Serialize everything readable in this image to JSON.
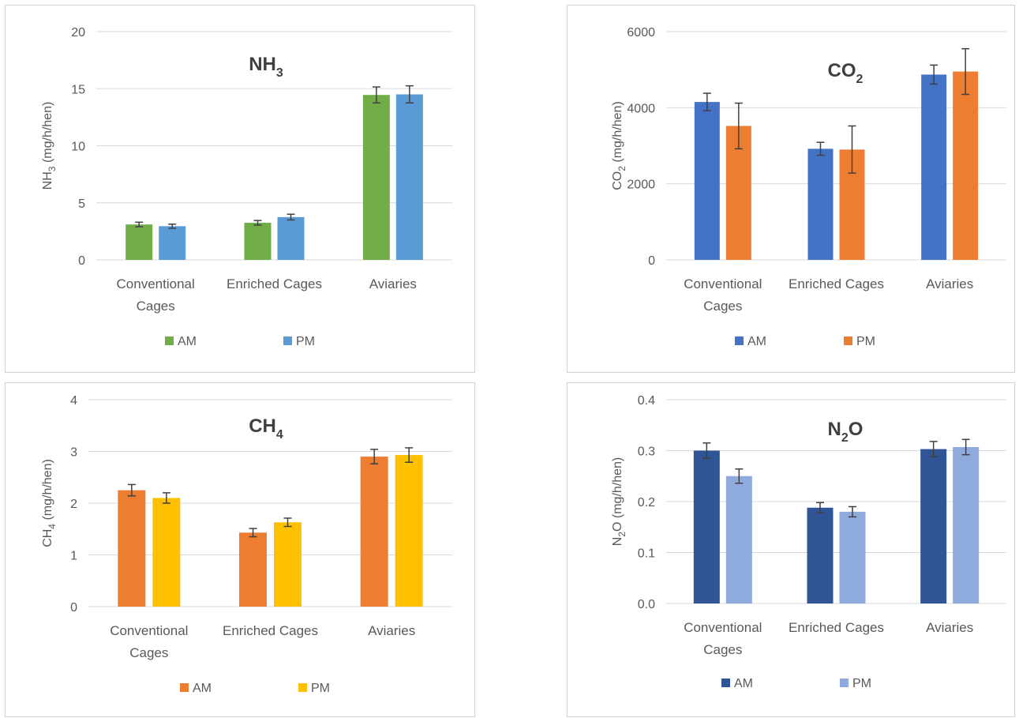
{
  "chart_data": [
    {
      "type": "bar",
      "title": "NH3",
      "title_main": "NH",
      "title_sub": "3",
      "ylabel_pre": "NH",
      "ylabel_sub": "3",
      "ylabel_post": " (mg/h/hen)",
      "categories": [
        [
          "Conventional",
          "Cages"
        ],
        [
          "Enriched Cages"
        ],
        [
          "Aviaries"
        ]
      ],
      "ylim": [
        0,
        20
      ],
      "yticks": [
        "0",
        "5",
        "10",
        "15",
        "20"
      ],
      "series": [
        {
          "name": "AM",
          "color": "#70ad47",
          "values": [
            3.1,
            3.25,
            14.45
          ],
          "errors": [
            0.2,
            0.2,
            0.7
          ]
        },
        {
          "name": "PM",
          "color": "#5b9bd5",
          "values": [
            2.95,
            3.75,
            14.5
          ],
          "errors": [
            0.18,
            0.25,
            0.75
          ]
        }
      ],
      "grid": true,
      "legend": "bottom"
    },
    {
      "type": "bar",
      "title": "CO2",
      "title_main": "CO",
      "title_sub": "2",
      "ylabel_pre": "CO",
      "ylabel_sub": "2",
      "ylabel_post": " (mg/h/hen)",
      "categories": [
        [
          "Conventional",
          "Cages"
        ],
        [
          "Enriched Cages"
        ],
        [
          "Aviaries"
        ]
      ],
      "ylim": [
        0,
        6000
      ],
      "yticks": [
        "0",
        "2000",
        "4000",
        "6000"
      ],
      "series": [
        {
          "name": "AM",
          "color": "#4472c4",
          "values": [
            4150,
            2920,
            4870
          ],
          "errors": [
            230,
            170,
            250
          ]
        },
        {
          "name": "PM",
          "color": "#ed7d31",
          "values": [
            3520,
            2900,
            4950
          ],
          "errors": [
            600,
            620,
            600
          ]
        }
      ],
      "grid": true,
      "legend": "bottom"
    },
    {
      "type": "bar",
      "title": "CH4",
      "title_main": "CH",
      "title_sub": "4",
      "ylabel_pre": "CH",
      "ylabel_sub": "4",
      "ylabel_post": " (mg/h/hen)",
      "categories": [
        [
          "Conventional",
          "Cages"
        ],
        [
          "Enriched Cages"
        ],
        [
          "Aviaries"
        ]
      ],
      "ylim": [
        0,
        4
      ],
      "yticks": [
        "0",
        "1",
        "2",
        "3",
        "4"
      ],
      "series": [
        {
          "name": "AM",
          "color": "#ed7d31",
          "values": [
            2.25,
            1.43,
            2.9
          ],
          "errors": [
            0.11,
            0.08,
            0.14
          ]
        },
        {
          "name": "PM",
          "color": "#ffc000",
          "values": [
            2.1,
            1.63,
            2.93
          ],
          "errors": [
            0.1,
            0.08,
            0.14
          ]
        }
      ],
      "grid": true,
      "legend": "bottom"
    },
    {
      "type": "bar",
      "title": "N2O",
      "title_main": "N",
      "title_sub": "2",
      "title_post": "O",
      "ylabel_pre": "N",
      "ylabel_sub": "2",
      "ylabel_post": "O (mg/h/hen)",
      "categories": [
        [
          "Conventional",
          "Cages"
        ],
        [
          "Enriched Cages"
        ],
        [
          "Aviaries"
        ]
      ],
      "ylim": [
        0,
        0.4
      ],
      "yticks": [
        "0.0",
        "0.1",
        "0.2",
        "0.3",
        "0.4"
      ],
      "series": [
        {
          "name": "AM",
          "color": "#2f5597",
          "values": [
            0.3,
            0.188,
            0.303
          ],
          "errors": [
            0.015,
            0.01,
            0.015
          ]
        },
        {
          "name": "PM",
          "color": "#8faadc",
          "values": [
            0.25,
            0.18,
            0.307
          ],
          "errors": [
            0.014,
            0.01,
            0.015
          ]
        }
      ],
      "grid": true,
      "legend": "bottom"
    }
  ]
}
